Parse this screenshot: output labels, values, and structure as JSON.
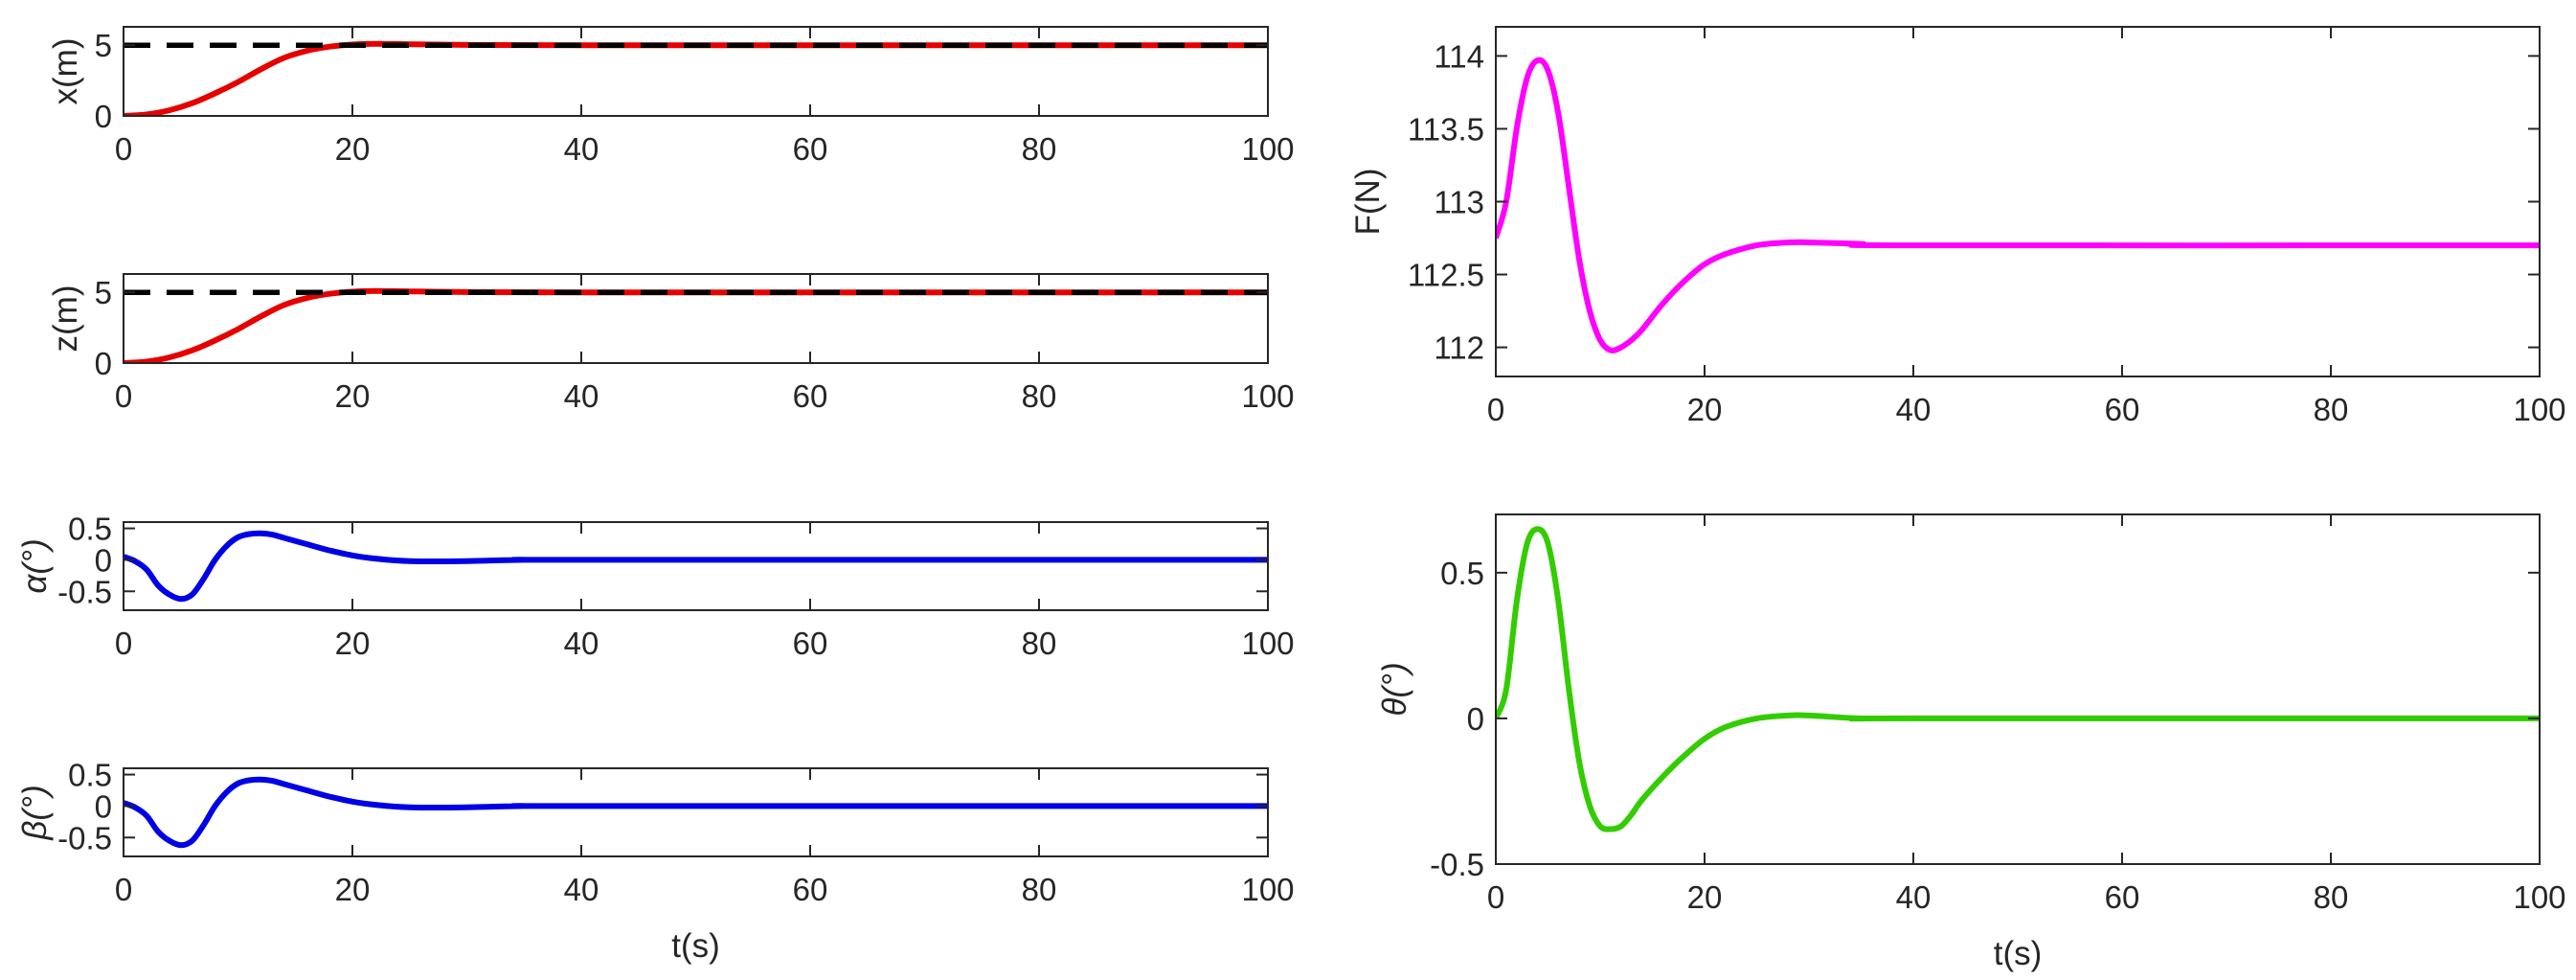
{
  "figure": {
    "xlabel_text": "t(s)"
  },
  "chart_data": [
    {
      "id": "x",
      "type": "line",
      "title": "",
      "xlabel": "",
      "ylabel": "x(m)",
      "xlim": [
        0,
        100
      ],
      "ylim": [
        0,
        6.3
      ],
      "xticks": [
        0,
        20,
        40,
        60,
        80,
        100
      ],
      "yticks": [
        0,
        5
      ],
      "ytick_labels": [
        "0",
        "5"
      ],
      "grid": false,
      "series": [
        {
          "name": "reference",
          "color": "#000000",
          "style": "dashed",
          "x": [
            0,
            100
          ],
          "values": [
            5,
            5
          ]
        },
        {
          "name": "response",
          "color": "#e60000",
          "style": "solid",
          "x": [
            0,
            2,
            4,
            6,
            8,
            10,
            12,
            14,
            16,
            18,
            20,
            22,
            25,
            30,
            40,
            100
          ],
          "values": [
            0,
            0.1,
            0.4,
            0.9,
            1.6,
            2.4,
            3.3,
            4.1,
            4.6,
            4.9,
            5.05,
            5.1,
            5.07,
            5.02,
            5.0,
            5.0
          ]
        }
      ]
    },
    {
      "id": "z",
      "type": "line",
      "title": "",
      "xlabel": "",
      "ylabel": "z(m)",
      "xlim": [
        0,
        100
      ],
      "ylim": [
        0,
        6.3
      ],
      "xticks": [
        0,
        20,
        40,
        60,
        80,
        100
      ],
      "yticks": [
        0,
        5
      ],
      "ytick_labels": [
        "0",
        "5"
      ],
      "grid": false,
      "series": [
        {
          "name": "reference",
          "color": "#000000",
          "style": "dashed",
          "x": [
            0,
            100
          ],
          "values": [
            5,
            5
          ]
        },
        {
          "name": "response",
          "color": "#e60000",
          "style": "solid",
          "x": [
            0,
            2,
            4,
            6,
            8,
            10,
            12,
            14,
            16,
            18,
            20,
            22,
            25,
            30,
            40,
            100
          ],
          "values": [
            0,
            0.1,
            0.4,
            0.9,
            1.6,
            2.4,
            3.3,
            4.1,
            4.6,
            4.9,
            5.05,
            5.1,
            5.07,
            5.02,
            5.0,
            5.0
          ]
        }
      ]
    },
    {
      "id": "alpha",
      "type": "line",
      "title": "",
      "xlabel": "",
      "ylabel": "α(°)",
      "xlim": [
        0,
        100
      ],
      "ylim": [
        -0.8,
        0.6
      ],
      "xticks": [
        0,
        20,
        40,
        60,
        80,
        100
      ],
      "yticks": [
        0.5,
        0,
        -0.5
      ],
      "ytick_labels": [
        "0.5",
        "0",
        "-0.5"
      ],
      "grid": false,
      "series": [
        {
          "name": "alpha",
          "color": "#0000e6",
          "style": "solid",
          "x": [
            0,
            1,
            2,
            3,
            4,
            5,
            6,
            7,
            8,
            9,
            10,
            11,
            12,
            13,
            14,
            16,
            18,
            20,
            22,
            25,
            30,
            35,
            40,
            100
          ],
          "values": [
            0.05,
            -0.02,
            -0.15,
            -0.4,
            -0.55,
            -0.62,
            -0.55,
            -0.3,
            0.0,
            0.22,
            0.36,
            0.41,
            0.42,
            0.4,
            0.35,
            0.25,
            0.15,
            0.07,
            0.02,
            -0.02,
            -0.02,
            0.0,
            0.0,
            0.0
          ]
        }
      ]
    },
    {
      "id": "beta",
      "type": "line",
      "title": "",
      "xlabel": "t(s)",
      "ylabel": "β(°)",
      "xlim": [
        0,
        100
      ],
      "ylim": [
        -0.8,
        0.6
      ],
      "xticks": [
        0,
        20,
        40,
        60,
        80,
        100
      ],
      "yticks": [
        0.5,
        0,
        -0.5
      ],
      "ytick_labels": [
        "0.5",
        "0",
        "-0.5"
      ],
      "grid": false,
      "series": [
        {
          "name": "beta",
          "color": "#0000e6",
          "style": "solid",
          "x": [
            0,
            1,
            2,
            3,
            4,
            5,
            6,
            7,
            8,
            9,
            10,
            11,
            12,
            13,
            14,
            16,
            18,
            20,
            22,
            25,
            30,
            35,
            40,
            100
          ],
          "values": [
            0.05,
            -0.02,
            -0.15,
            -0.4,
            -0.55,
            -0.62,
            -0.55,
            -0.3,
            0.0,
            0.22,
            0.36,
            0.41,
            0.42,
            0.4,
            0.35,
            0.25,
            0.15,
            0.07,
            0.02,
            -0.02,
            -0.02,
            0.0,
            0.0,
            0.0
          ]
        }
      ]
    },
    {
      "id": "F",
      "type": "line",
      "title": "",
      "xlabel": "",
      "ylabel": "F(N)",
      "xlim": [
        0,
        100
      ],
      "ylim": [
        111.8,
        114.2
      ],
      "xticks": [
        0,
        20,
        40,
        60,
        80,
        100
      ],
      "yticks": [
        112,
        112.5,
        113,
        113.5,
        114
      ],
      "ytick_labels": [
        "112",
        "112.5",
        "113",
        "113.5",
        "114"
      ],
      "grid": false,
      "series": [
        {
          "name": "F",
          "color": "#ff00ff",
          "style": "solid",
          "x": [
            0,
            1,
            2,
            3,
            4,
            5,
            6,
            7,
            8,
            9,
            10,
            11,
            12,
            13,
            14,
            16,
            18,
            20,
            22,
            25,
            28,
            30,
            35,
            40,
            100
          ],
          "values": [
            112.75,
            113.0,
            113.5,
            113.85,
            113.97,
            113.9,
            113.6,
            113.1,
            112.6,
            112.25,
            112.05,
            111.98,
            112.0,
            112.05,
            112.12,
            112.3,
            112.45,
            112.57,
            112.64,
            112.7,
            112.72,
            112.72,
            112.71,
            112.7,
            112.7
          ]
        }
      ]
    },
    {
      "id": "theta",
      "type": "line",
      "title": "",
      "xlabel": "t(s)",
      "ylabel": "θ(°)",
      "xlim": [
        0,
        100
      ],
      "ylim": [
        -0.5,
        0.7
      ],
      "xticks": [
        0,
        20,
        40,
        60,
        80,
        100
      ],
      "yticks": [
        0.5,
        0,
        -0.5
      ],
      "ytick_labels": [
        "0.5",
        "0",
        "-0.5"
      ],
      "grid": false,
      "series": [
        {
          "name": "theta",
          "color": "#33cc00",
          "style": "solid",
          "x": [
            0,
            1,
            2,
            3,
            4,
            5,
            6,
            7,
            8,
            9,
            10,
            11,
            12,
            13,
            14,
            16,
            18,
            20,
            22,
            25,
            28,
            30,
            35,
            40,
            100
          ],
          "values": [
            0.0,
            0.1,
            0.4,
            0.6,
            0.65,
            0.6,
            0.4,
            0.1,
            -0.15,
            -0.3,
            -0.37,
            -0.38,
            -0.37,
            -0.33,
            -0.28,
            -0.2,
            -0.13,
            -0.07,
            -0.03,
            0.0,
            0.01,
            0.01,
            0.0,
            0.0,
            0.0
          ]
        }
      ]
    }
  ]
}
